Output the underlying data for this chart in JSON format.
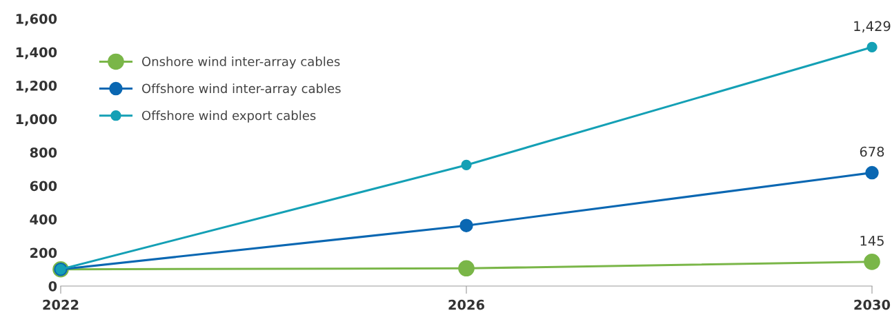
{
  "chart_data": {
    "type": "line",
    "x": [
      2022,
      2026,
      2030
    ],
    "series": [
      {
        "name": "Onshore wind inter-array cables",
        "color": "#7ab648",
        "values": [
          100,
          106,
          145
        ],
        "value_labels": [
          null,
          null,
          "145"
        ]
      },
      {
        "name": "Offshore wind inter-array cables",
        "color": "#0a67b2",
        "values": [
          100,
          362,
          678
        ],
        "value_labels": [
          null,
          null,
          "678"
        ]
      },
      {
        "name": "Offshore wind export cables",
        "color": "#14a0b5",
        "values": [
          100,
          724,
          1429
        ],
        "value_labels": [
          null,
          null,
          "1,429"
        ]
      }
    ],
    "xlim": [
      2022,
      2030
    ],
    "xticks": [
      2022,
      2026,
      2030
    ],
    "ylim": [
      0,
      1600
    ],
    "yticks": [
      0,
      200,
      400,
      600,
      800,
      {
        "value": 1000,
        "label": "1,000"
      },
      {
        "value": 1200,
        "label": "1,200"
      },
      {
        "value": 1400,
        "label": "1,400"
      },
      {
        "value": 1600,
        "label": "1,600"
      }
    ],
    "grid": false,
    "legend": "top left",
    "marker": "circle",
    "line_style": "solid"
  }
}
